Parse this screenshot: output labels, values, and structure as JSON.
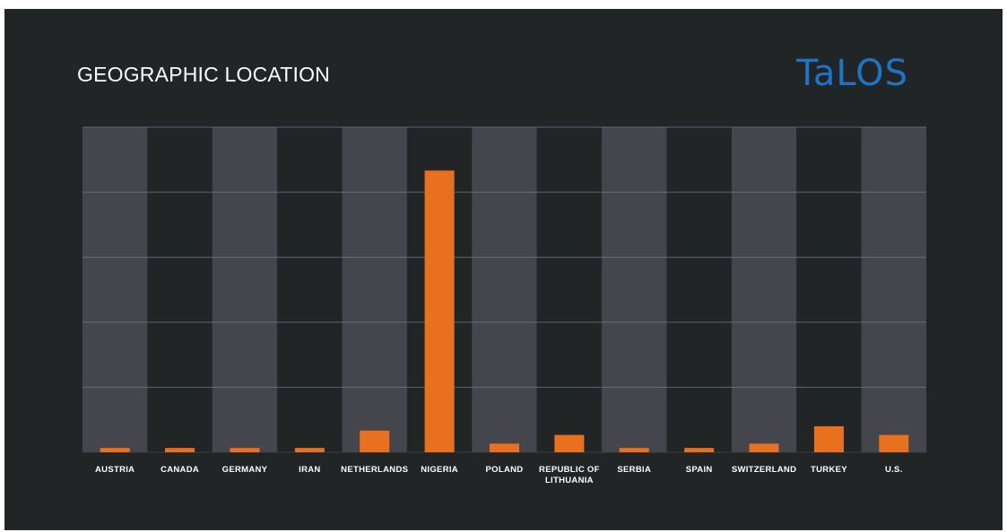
{
  "header": {
    "title": "GEOGRAPHIC LOCATION",
    "logo_text": "TaLOS"
  },
  "colors": {
    "background": "#222526",
    "band_light": "#45464d",
    "band_dark": "#222526",
    "bar": "#e8701f",
    "gridline": "#6f7a88",
    "logo": "#1b76c9"
  },
  "chart_data": {
    "type": "bar",
    "title": "GEOGRAPHIC LOCATION",
    "xlabel": "",
    "ylabel": "",
    "categories": [
      "AUSTRIA",
      "CANADA",
      "GERMANY",
      "IRAN",
      "NETHERLANDS",
      "NIGERIA",
      "POLAND",
      "REPUBLIC OF LITHUANIA",
      "SERBIA",
      "SPAIN",
      "SWITZERLAND",
      "TURKEY",
      "U.S."
    ],
    "values": [
      1,
      1,
      1,
      1,
      5,
      65,
      2,
      4,
      1,
      1,
      2,
      6,
      4
    ],
    "ylim": [
      0,
      75
    ],
    "y_gridlines": [
      15,
      30,
      45,
      60,
      75
    ],
    "y_tick_labels_visible": false,
    "grid": true,
    "legend": "none"
  }
}
